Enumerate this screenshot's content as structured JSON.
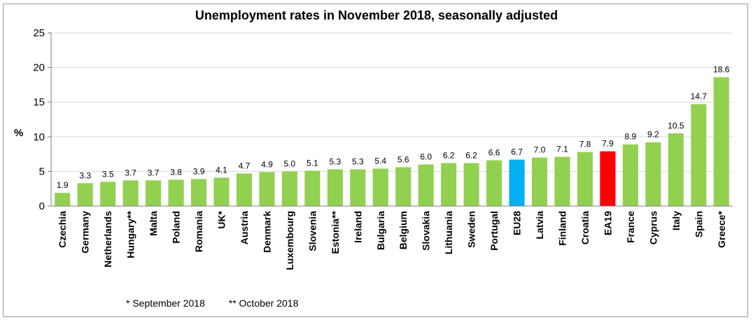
{
  "chart_data": {
    "type": "bar",
    "title": "Unemployment rates in November 2018, seasonally adjusted",
    "ylabel": "%",
    "ylim": [
      0,
      25
    ],
    "yticks": [
      0,
      5,
      10,
      15,
      20,
      25
    ],
    "grid": true,
    "categories": [
      "Czechia",
      "Germany",
      "Netherlands",
      "Hungary**",
      "Malta",
      "Poland",
      "Romania",
      "UK*",
      "Austria",
      "Denmark",
      "Luxembourg",
      "Slovenia",
      "Estonia**",
      "Ireland",
      "Bulgaria",
      "Belgium",
      "Slovakia",
      "Lithuania",
      "Sweden",
      "Portugal",
      "EU28",
      "Latvia",
      "Finland",
      "Croatia",
      "EA19",
      "France",
      "Cyprus",
      "Italy",
      "Spain",
      "Greece*"
    ],
    "values": [
      1.9,
      3.3,
      3.5,
      3.7,
      3.7,
      3.8,
      3.9,
      4.1,
      4.7,
      4.9,
      5.0,
      5.1,
      5.3,
      5.3,
      5.4,
      5.6,
      6.0,
      6.2,
      6.2,
      6.6,
      6.7,
      7.0,
      7.1,
      7.8,
      7.9,
      8.9,
      9.2,
      10.5,
      14.7,
      18.6
    ],
    "value_labels": [
      "1.9",
      "3.3",
      "3.5",
      "3.7",
      "3.7",
      "3.8",
      "3.9",
      "4.1",
      "4.7",
      "4.9",
      "5.0",
      "5.1",
      "5.3",
      "5.3",
      "5.4",
      "5.6",
      "6.0",
      "6.2",
      "6.2",
      "6.6",
      "6.7",
      "7.0",
      "7.1",
      "7.8",
      "7.9",
      "8.9",
      "9.2",
      "10.5",
      "14.7",
      "18.6"
    ],
    "colors": {
      "default": "#92d050",
      "EU28": "#00b0f0",
      "EA19": "#ff0000"
    }
  },
  "footnotes": {
    "note1": "*  September 2018",
    "note2": "** October 2018"
  }
}
